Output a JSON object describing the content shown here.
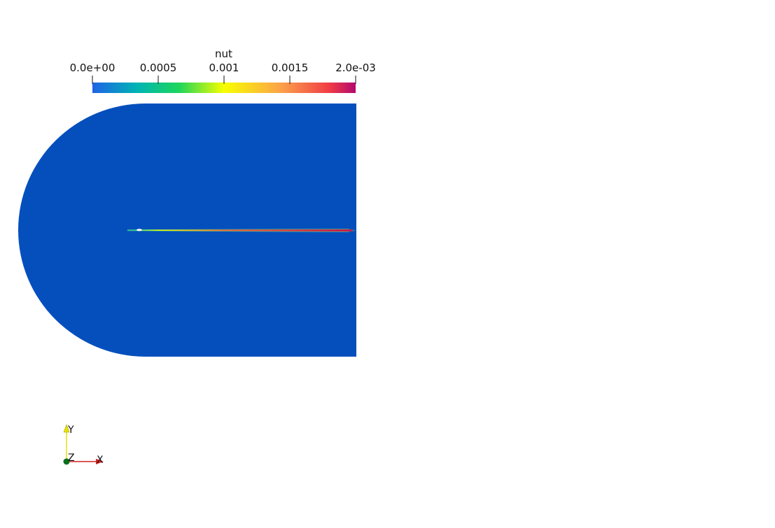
{
  "colorbar": {
    "title": "nut",
    "tick_labels": [
      "0.0e+00",
      "0.0005",
      "0.001",
      "0.0015",
      "2.0e-03"
    ],
    "range": [
      0.0,
      0.002
    ],
    "colormap": [
      "#1f63e6",
      "#00b4b4",
      "#1ed65a",
      "#f7ff00",
      "#fba04a",
      "#f03c45",
      "#b4086e"
    ]
  },
  "field": {
    "background_color": "#054fbd",
    "wake_colors": [
      "#5ee07a",
      "#f7ff00",
      "#f0603c",
      "#b4086e"
    ]
  },
  "orientation_axes": {
    "x_label": "X",
    "y_label": "Y",
    "z_label": "Z",
    "x_color": "#d42020",
    "y_color": "#e8e000",
    "z_color": "#0a6e1e"
  }
}
